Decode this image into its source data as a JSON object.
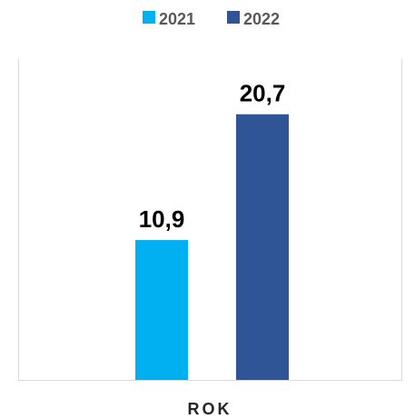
{
  "chart_data": {
    "type": "bar",
    "categories": [
      "ROK"
    ],
    "series": [
      {
        "name": "2021",
        "values": [
          10.9
        ],
        "label": "10,9",
        "color": "#00B0F0"
      },
      {
        "name": "2022",
        "values": [
          20.7
        ],
        "label": "20,7",
        "color": "#2F5597"
      }
    ],
    "title": "",
    "xlabel": "ROK",
    "ylabel": "",
    "ylim": [
      0,
      25
    ],
    "grid": false,
    "legend": "top-center",
    "data_labels": true
  }
}
